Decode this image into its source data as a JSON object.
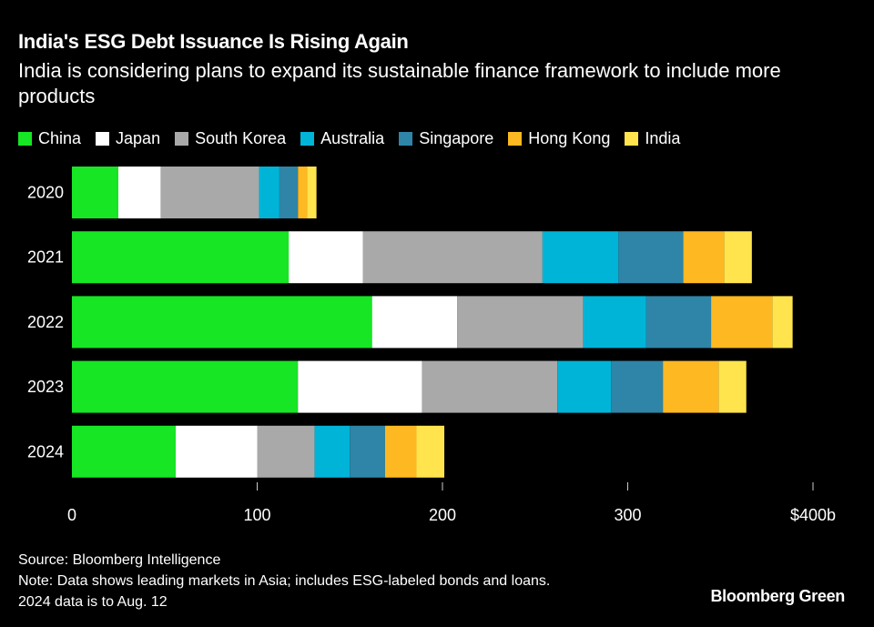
{
  "chart_data": {
    "type": "bar",
    "orientation": "horizontal",
    "stacked": true,
    "title": "India's ESG Debt Issuance Is Rising Again",
    "subtitle": "India is considering plans to expand its sustainable finance framework to include more products",
    "categories": [
      "2020",
      "2021",
      "2022",
      "2023",
      "2024"
    ],
    "series": [
      {
        "name": "China",
        "color": "#16e624",
        "values": [
          25,
          117,
          162,
          122,
          56
        ]
      },
      {
        "name": "Japan",
        "color": "#ffffff",
        "values": [
          23,
          40,
          46,
          67,
          44
        ]
      },
      {
        "name": "South Korea",
        "color": "#a9a9a9",
        "values": [
          53,
          97,
          68,
          73,
          31
        ]
      },
      {
        "name": "Australia",
        "color": "#00b4d8",
        "values": [
          11,
          41,
          34,
          29,
          19
        ]
      },
      {
        "name": "Singapore",
        "color": "#2e85a8",
        "values": [
          10,
          35,
          35,
          28,
          19
        ]
      },
      {
        "name": "Hong Kong",
        "color": "#fdb822",
        "values": [
          5,
          22,
          33,
          30,
          17
        ]
      },
      {
        "name": "India",
        "color": "#ffe44d",
        "values": [
          5,
          15,
          11,
          15,
          15
        ]
      }
    ],
    "xlim": [
      0,
      400
    ],
    "x_ticks": [
      "0",
      "100",
      "200",
      "300",
      "$400b"
    ],
    "x_tick_values": [
      0,
      100,
      200,
      300,
      400
    ],
    "legend": "top",
    "grid": false
  },
  "footer": {
    "source": "Source: Bloomberg Intelligence",
    "note": "Note: Data shows leading markets in Asia; includes ESG-labeled bonds and loans.",
    "note2": "2024 data is to Aug. 12",
    "brand": "Bloomberg Green"
  }
}
